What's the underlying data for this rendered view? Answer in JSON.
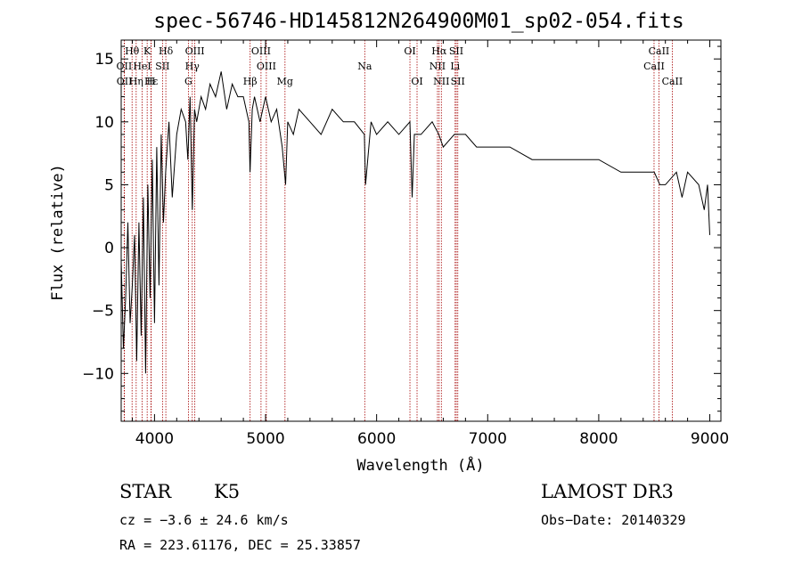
{
  "chart_data": {
    "type": "line",
    "title": "spec-56746-HD145812N264900M01_sp02-054.fits",
    "xlabel": "Wavelength (Å)",
    "ylabel": "Flux (relative)",
    "xlim": [
      3700,
      9100
    ],
    "ylim": [
      -13.8,
      16.5
    ],
    "xticks": [
      4000,
      5000,
      6000,
      7000,
      8000,
      9000
    ],
    "yticks": [
      -10,
      -5,
      0,
      5,
      10,
      15
    ],
    "series": [
      {
        "name": "flux",
        "x": [
          3700,
          3720,
          3740,
          3760,
          3780,
          3800,
          3820,
          3840,
          3860,
          3880,
          3900,
          3920,
          3940,
          3960,
          3980,
          4000,
          4020,
          4040,
          4060,
          4080,
          4100,
          4130,
          4160,
          4200,
          4240,
          4280,
          4300,
          4320,
          4340,
          4360,
          4380,
          4420,
          4460,
          4500,
          4550,
          4600,
          4650,
          4700,
          4750,
          4800,
          4850,
          4860,
          4880,
          4900,
          4950,
          5000,
          5050,
          5100,
          5150,
          5180,
          5200,
          5250,
          5300,
          5400,
          5500,
          5600,
          5700,
          5800,
          5890,
          5900,
          5950,
          6000,
          6100,
          6200,
          6300,
          6320,
          6340,
          6400,
          6500,
          6560,
          6600,
          6700,
          6800,
          6900,
          7000,
          7200,
          7400,
          7600,
          7800,
          8000,
          8200,
          8400,
          8500,
          8550,
          8600,
          8700,
          8750,
          8800,
          8900,
          8950,
          8980,
          9000
        ],
        "values": [
          -1,
          -8,
          -4,
          2,
          -6,
          -3,
          1,
          -9,
          2,
          -7,
          4,
          -10,
          5,
          -4,
          7,
          -6,
          8,
          -3,
          9,
          2,
          6,
          10,
          4,
          9,
          11,
          10,
          7,
          12,
          3,
          11,
          10,
          12,
          11,
          13,
          12,
          14,
          11,
          13,
          12,
          12,
          10,
          6,
          11,
          12,
          10,
          12,
          10,
          11,
          8,
          5,
          10,
          9,
          11,
          10,
          9,
          11,
          10,
          10,
          9,
          5,
          10,
          9,
          10,
          9,
          10,
          4,
          9,
          9,
          10,
          9,
          8,
          9,
          9,
          8,
          8,
          8,
          7,
          7,
          7,
          7,
          6,
          6,
          6,
          5,
          5,
          6,
          4,
          6,
          5,
          3,
          5,
          1
        ]
      }
    ],
    "annotations": [
      {
        "label": "Hθ",
        "wavelength": 3798,
        "row": 1
      },
      {
        "label": "OII",
        "wavelength": 3727,
        "row": 2
      },
      {
        "label": "Hη",
        "wavelength": 3835,
        "row": 3
      },
      {
        "label": "OII",
        "wavelength": 3729,
        "row": 3
      },
      {
        "label": "K",
        "wavelength": 3934,
        "row": 1
      },
      {
        "label": "HeI",
        "wavelength": 3889,
        "row": 2
      },
      {
        "label": "Hε",
        "wavelength": 3970,
        "row": 3
      },
      {
        "label": "H",
        "wavelength": 3968,
        "row": 3
      },
      {
        "label": "SII",
        "wavelength": 4072,
        "row": 2
      },
      {
        "label": "Hδ",
        "wavelength": 4102,
        "row": 1
      },
      {
        "label": "OIII",
        "wavelength": 4363,
        "row": 1
      },
      {
        "label": "Hγ",
        "wavelength": 4340,
        "row": 2
      },
      {
        "label": "G",
        "wavelength": 4305,
        "row": 3
      },
      {
        "label": "Hβ",
        "wavelength": 4861,
        "row": 3
      },
      {
        "label": "OIII",
        "wavelength": 4959,
        "row": 1
      },
      {
        "label": "OIII",
        "wavelength": 5007,
        "row": 2
      },
      {
        "label": "Mg",
        "wavelength": 5175,
        "row": 3
      },
      {
        "label": "Na",
        "wavelength": 5893,
        "row": 2
      },
      {
        "label": "OI",
        "wavelength": 6300,
        "row": 1
      },
      {
        "label": "OI",
        "wavelength": 6364,
        "row": 3
      },
      {
        "label": "Hα",
        "wavelength": 6563,
        "row": 1
      },
      {
        "label": "NII",
        "wavelength": 6548,
        "row": 2
      },
      {
        "label": "NII",
        "wavelength": 6583,
        "row": 3
      },
      {
        "label": "SII",
        "wavelength": 6717,
        "row": 1
      },
      {
        "label": "Li",
        "wavelength": 6707,
        "row": 2
      },
      {
        "label": "SII",
        "wavelength": 6731,
        "row": 3
      },
      {
        "label": "CaII",
        "wavelength": 8542,
        "row": 1
      },
      {
        "label": "CaII",
        "wavelength": 8498,
        "row": 2
      },
      {
        "label": "CaII",
        "wavelength": 8662,
        "row": 3
      }
    ]
  },
  "info": {
    "object_type": "STAR",
    "subclass": "K5",
    "survey": "LAMOST DR3",
    "cz": "cz = −3.6 ± 24.6 km/s",
    "obs_date": "Obs−Date: 20140329",
    "coords": "RA = 223.61176, DEC =  25.33857"
  },
  "colors": {
    "spectrum": "#000000",
    "line_markers": "#a50000"
  }
}
